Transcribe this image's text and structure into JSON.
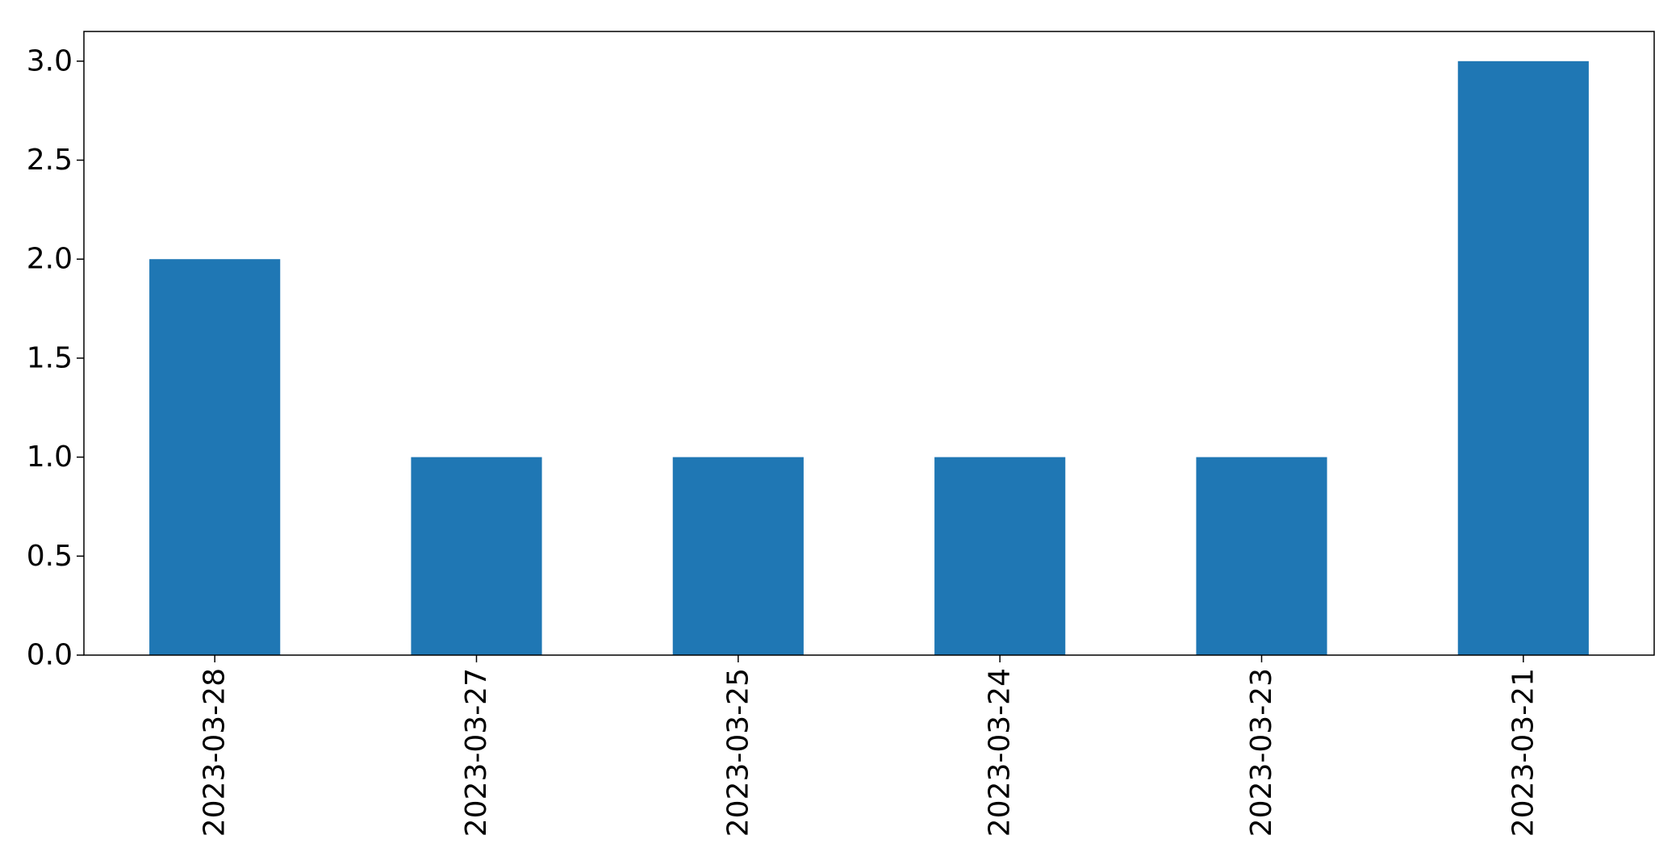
{
  "chart_data": {
    "type": "bar",
    "categories": [
      "2023-03-28",
      "2023-03-27",
      "2023-03-25",
      "2023-03-24",
      "2023-03-23",
      "2023-03-21"
    ],
    "values": [
      2,
      1,
      1,
      1,
      1,
      3
    ],
    "title": "",
    "xlabel": "",
    "ylabel": "",
    "ylim": [
      0,
      3.15
    ],
    "yticks": [
      "0.0",
      "0.5",
      "1.0",
      "1.5",
      "2.0",
      "2.5",
      "3.0"
    ],
    "grid": false,
    "legend": "none",
    "bar_color": "#1f77b4",
    "x_tick_rotation": "vertical"
  }
}
